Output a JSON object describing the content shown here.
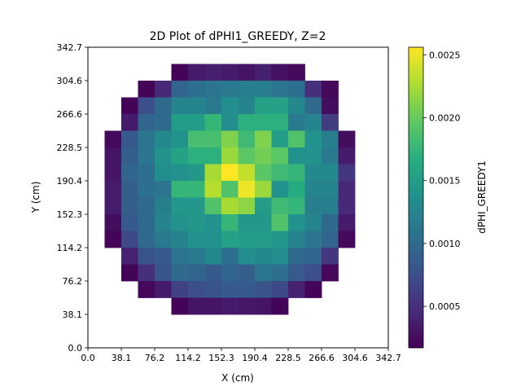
{
  "chart_data": {
    "type": "heatmap",
    "title": "2D Plot of dPHI1_GREEDY, Z=2",
    "xlabel": "X (cm)",
    "ylabel": "Y (cm)",
    "colorbar_label": "dPHI_GREEDY1",
    "colormap": "viridis",
    "xlim": [
      0.0,
      342.7
    ],
    "ylim": [
      0.0,
      342.7
    ],
    "xticks": [
      "0.0",
      "38.1",
      "76.2",
      "114.2",
      "152.3",
      "190.4",
      "228.5",
      "266.6",
      "304.6",
      "342.7"
    ],
    "yticks": [
      "0.0",
      "38.1",
      "76.2",
      "114.2",
      "152.3",
      "190.4",
      "228.5",
      "266.6",
      "304.6",
      "342.7"
    ],
    "colorbar_range": [
      0.00017,
      0.00256
    ],
    "colorbar_ticks": [
      "0.0005",
      "0.0010",
      "0.0015",
      "0.0020",
      "0.0025"
    ],
    "grid_size": 18,
    "cells_top_to_bottom": [
      [
        null,
        null,
        null,
        null,
        null,
        null,
        null,
        null,
        null,
        null,
        null,
        null,
        null,
        null,
        null,
        null,
        null,
        null
      ],
      [
        null,
        null,
        null,
        null,
        null,
        0.0002,
        0.00035,
        0.00038,
        0.00035,
        0.0003,
        0.00038,
        0.00028,
        0.00022,
        null,
        null,
        null,
        null,
        null
      ],
      [
        null,
        null,
        null,
        0.0002,
        0.00045,
        0.00095,
        0.00105,
        0.0011,
        0.00115,
        0.0012,
        0.0012,
        0.0011,
        0.00105,
        0.0005,
        0.00022,
        null,
        null,
        null
      ],
      [
        null,
        null,
        0.0002,
        0.00075,
        0.001,
        0.00125,
        0.00125,
        0.00115,
        0.00135,
        0.00125,
        0.00155,
        0.00155,
        0.0013,
        0.001,
        0.00025,
        null,
        null,
        null
      ],
      [
        null,
        null,
        0.00035,
        0.00095,
        0.001,
        0.0015,
        0.0015,
        0.00175,
        0.00135,
        0.0017,
        0.0017,
        0.0017,
        0.00115,
        0.00125,
        0.0006,
        null,
        null,
        null
      ],
      [
        null,
        0.00022,
        0.00085,
        0.0011,
        0.0013,
        0.0014,
        0.00185,
        0.00185,
        0.0021,
        0.0018,
        0.0021,
        0.0015,
        0.0019,
        0.0014,
        0.0012,
        0.00025,
        null,
        null
      ],
      [
        null,
        0.0003,
        0.0009,
        0.0011,
        0.0014,
        0.00155,
        0.0017,
        0.0017,
        0.0022,
        0.00195,
        0.00205,
        0.00195,
        0.0014,
        0.0014,
        0.00115,
        0.00035,
        null,
        null
      ],
      [
        null,
        0.0003,
        0.00095,
        0.00105,
        0.00135,
        0.0014,
        0.00145,
        0.00225,
        0.00256,
        0.00235,
        0.00195,
        0.0018,
        0.00175,
        0.0013,
        0.0013,
        0.00055,
        null,
        null
      ],
      [
        null,
        0.00035,
        0.0009,
        0.00105,
        0.0011,
        0.00175,
        0.00175,
        0.0023,
        0.0019,
        0.0025,
        0.0022,
        0.0014,
        0.00165,
        0.00125,
        0.00125,
        0.00045,
        null,
        null
      ],
      [
        null,
        0.00035,
        0.0009,
        0.001,
        0.0012,
        0.00145,
        0.00145,
        0.0019,
        0.00225,
        0.00215,
        0.0015,
        0.0018,
        0.00175,
        0.0012,
        0.0012,
        0.00045,
        null,
        null
      ],
      [
        null,
        0.00025,
        0.00085,
        0.001,
        0.00125,
        0.0014,
        0.00145,
        0.0014,
        0.00175,
        0.00145,
        0.00145,
        0.0019,
        0.0014,
        0.00125,
        0.001,
        0.00035,
        null,
        null
      ],
      [
        null,
        0.0002,
        0.0007,
        0.001,
        0.00115,
        0.00125,
        0.0014,
        0.0014,
        0.00155,
        0.0015,
        0.0015,
        0.00145,
        0.00125,
        0.0011,
        0.00095,
        0.00022,
        null,
        null
      ],
      [
        null,
        null,
        0.0004,
        0.0008,
        0.00085,
        0.0011,
        0.00115,
        0.0013,
        0.00105,
        0.00135,
        0.0013,
        0.00135,
        0.001,
        0.00095,
        0.00055,
        null,
        null,
        null
      ],
      [
        null,
        null,
        0.0002,
        0.0005,
        0.0008,
        0.001,
        0.00095,
        0.00085,
        0.00095,
        0.0009,
        0.0011,
        0.00105,
        0.00085,
        0.00075,
        0.00022,
        null,
        null,
        null
      ],
      [
        null,
        null,
        null,
        0.00022,
        0.00035,
        0.00065,
        0.00075,
        0.0008,
        0.00085,
        0.00085,
        0.0008,
        0.0007,
        0.0004,
        0.0002,
        null,
        null,
        null,
        null
      ],
      [
        null,
        null,
        null,
        null,
        null,
        0.0002,
        0.0003,
        0.0003,
        0.00035,
        0.00032,
        0.0003,
        0.0002,
        null,
        null,
        null,
        null,
        null,
        null
      ],
      [
        null,
        null,
        null,
        null,
        null,
        null,
        null,
        null,
        null,
        null,
        null,
        null,
        null,
        null,
        null,
        null,
        null,
        null
      ],
      [
        null,
        null,
        null,
        null,
        null,
        null,
        null,
        null,
        null,
        null,
        null,
        null,
        null,
        null,
        null,
        null,
        null,
        null
      ]
    ]
  }
}
